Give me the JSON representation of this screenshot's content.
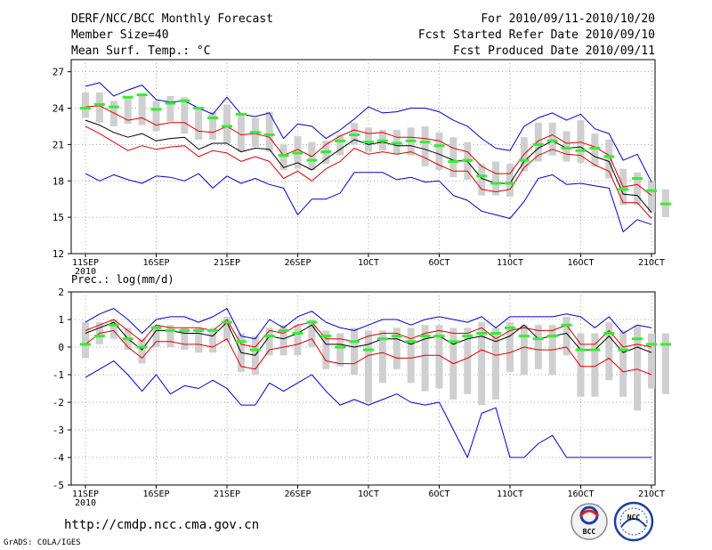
{
  "header": {
    "title": "DERF/NCC/BCC Monthly Forecast",
    "member_size": "Member Size=40",
    "variable": "Mean Surf. Temp.: °C",
    "period": "For 2010/09/11-2010/10/20",
    "started": "Fcst Started Refer Date 2010/09/10",
    "produced": "Fcst Produced Date 2010/09/11"
  },
  "footer": {
    "url": "http://cmdp.ncc.cma.gov.cn",
    "credit": "GrADS: COLA/IGES",
    "logo_bcc": "BCC",
    "logo_ncc": "NCC"
  },
  "colors": {
    "envelope": "#0000cc",
    "spread": "#dd0000",
    "mean": "#000000",
    "bar": "#cfcfcf",
    "observed": "#33ee33",
    "grid": "#888888"
  },
  "chart_data": [
    {
      "type": "line",
      "title": "Mean Surf. Temp.: °C",
      "ylabel": "°C",
      "ylim": [
        12,
        28
      ],
      "yticks": [
        12,
        15,
        18,
        21,
        24,
        27
      ],
      "xlim": [
        0,
        40
      ],
      "xtick_positions": [
        0,
        5,
        10,
        15,
        20,
        25,
        30,
        35,
        40
      ],
      "xtick_labels": [
        "11SEP",
        "16SEP",
        "21SEP",
        "26SEP",
        "1OCT",
        "6OCT",
        "11OCT",
        "16OCT",
        "21OCT"
      ],
      "xtick_sublabel": "2010",
      "series": [
        {
          "name": "ensemble max",
          "color": "#0000cc",
          "values": [
            25.8,
            26.1,
            25.0,
            25.5,
            25.9,
            24.7,
            24.5,
            24.6,
            24.0,
            23.5,
            24.9,
            23.5,
            23.3,
            23.6,
            21.5,
            22.7,
            22.5,
            21.5,
            22.2,
            23.1,
            24.1,
            23.6,
            23.7,
            24.0,
            24.0,
            23.7,
            23.0,
            22.5,
            21.5,
            20.7,
            20.5,
            22.5,
            23.2,
            23.6,
            23.0,
            23.5,
            22.3,
            21.9,
            19.7,
            20.2,
            17.9
          ]
        },
        {
          "name": "spread upper",
          "color": "#dd0000",
          "values": [
            24.1,
            24.2,
            23.6,
            23.0,
            23.2,
            22.6,
            22.8,
            22.8,
            22.1,
            22.0,
            22.5,
            21.8,
            21.9,
            21.6,
            20.1,
            20.6,
            20.0,
            21.0,
            21.7,
            22.2,
            21.9,
            22.0,
            21.6,
            21.6,
            21.5,
            21.3,
            20.7,
            20.4,
            19.2,
            18.6,
            18.6,
            20.2,
            21.3,
            21.8,
            21.1,
            21.2,
            20.8,
            20.1,
            17.5,
            17.7,
            16.8
          ]
        },
        {
          "name": "ensemble mean",
          "color": "#000000",
          "values": [
            23.0,
            22.6,
            22.0,
            21.6,
            21.9,
            21.3,
            21.5,
            21.6,
            20.6,
            21.1,
            21.1,
            20.4,
            20.7,
            20.6,
            19.1,
            19.5,
            18.9,
            19.8,
            20.6,
            21.4,
            21.0,
            21.2,
            20.9,
            20.9,
            20.6,
            20.2,
            19.7,
            19.6,
            18.2,
            17.8,
            17.8,
            19.6,
            20.7,
            21.3,
            20.7,
            20.8,
            20.0,
            19.6,
            16.9,
            16.8,
            15.4
          ]
        },
        {
          "name": "spread lower",
          "color": "#dd0000",
          "values": [
            22.5,
            21.9,
            21.2,
            20.5,
            20.9,
            20.6,
            20.8,
            20.9,
            20.0,
            20.5,
            20.3,
            19.6,
            20.0,
            19.6,
            18.2,
            18.8,
            18.0,
            19.0,
            19.6,
            20.7,
            20.2,
            20.4,
            20.2,
            20.4,
            19.9,
            19.3,
            18.8,
            18.8,
            17.3,
            17.1,
            17.3,
            19.1,
            20.1,
            20.6,
            20.2,
            20.1,
            19.3,
            18.8,
            16.2,
            16.2,
            14.9
          ]
        },
        {
          "name": "ensemble min",
          "color": "#0000cc",
          "values": [
            18.6,
            18.0,
            18.5,
            18.1,
            17.8,
            18.4,
            18.3,
            18.0,
            18.6,
            17.4,
            18.4,
            17.8,
            18.2,
            17.7,
            17.4,
            15.2,
            16.5,
            16.5,
            17.0,
            18.7,
            18.7,
            18.7,
            18.1,
            18.3,
            17.9,
            18.0,
            16.8,
            16.4,
            15.5,
            15.2,
            14.9,
            16.3,
            18.2,
            18.5,
            17.7,
            17.8,
            17.6,
            17.4,
            13.8,
            14.8,
            14.4
          ]
        },
        {
          "name": "observed",
          "color": "#33ee33",
          "values": [
            24.0,
            24.3,
            24.1,
            24.9,
            25.1,
            23.9,
            24.4,
            24.6,
            24.0,
            23.2,
            22.5,
            23.5,
            22.0,
            21.8,
            20.1,
            20.3,
            19.7,
            20.4,
            21.3,
            21.8,
            21.2,
            21.3,
            21.1,
            21.3,
            21.2,
            20.9,
            19.6,
            19.7,
            18.4,
            17.8,
            17.8,
            19.7,
            21.0,
            21.3,
            20.7,
            20.5,
            20.7,
            20.0,
            17.3,
            18.2,
            17.2,
            16.1
          ]
        }
      ],
      "range_bars": {
        "lower": [
          23.2,
          22.8,
          22.5,
          22.7,
          22.6,
          22.1,
          22.9,
          21.9,
          21.4,
          21.4,
          21.1,
          20.4,
          20.8,
          20.4,
          18.9,
          19.0,
          18.9,
          19.4,
          20.1,
          21.0,
          20.4,
          20.5,
          20.2,
          20.1,
          19.2,
          18.9,
          18.3,
          18.1,
          16.8,
          16.8,
          16.7,
          18.8,
          19.6,
          20.1,
          19.6,
          19.5,
          19.2,
          18.2,
          16.0,
          16.0,
          15.4,
          15.0
        ],
        "upper": [
          25.3,
          25.3,
          24.6,
          25.0,
          25.2,
          24.6,
          25.0,
          24.9,
          24.1,
          23.7,
          24.3,
          23.5,
          23.2,
          23.7,
          21.0,
          21.7,
          21.2,
          21.3,
          21.8,
          22.8,
          22.4,
          22.2,
          22.2,
          22.4,
          22.5,
          22.0,
          21.6,
          21.2,
          19.4,
          19.6,
          19.4,
          21.6,
          22.8,
          22.8,
          22.1,
          23.0,
          21.9,
          21.4,
          19.0,
          18.7,
          18.0,
          17.3
        ]
      }
    },
    {
      "type": "line",
      "title": "Prec.: log(mm/d)",
      "ylabel": "log(mm/d)",
      "ylim": [
        -5,
        2
      ],
      "yticks": [
        -5,
        -4,
        -3,
        -2,
        -1,
        0,
        1,
        2
      ],
      "xlim": [
        0,
        40
      ],
      "xtick_positions": [
        0,
        5,
        10,
        15,
        20,
        25,
        30,
        35,
        40
      ],
      "xtick_labels": [
        "11SEP",
        "16SEP",
        "21SEP",
        "26SEP",
        "1OCT",
        "6OCT",
        "11OCT",
        "16OCT",
        "21OCT"
      ],
      "xtick_sublabel": "2010",
      "series": [
        {
          "name": "ensemble max",
          "color": "#0000cc",
          "values": [
            0.9,
            1.2,
            1.4,
            1.0,
            0.5,
            1.0,
            1.1,
            1.1,
            0.9,
            1.1,
            1.4,
            0.4,
            0.3,
            1.0,
            0.7,
            1.1,
            1.3,
            0.9,
            0.7,
            0.6,
            0.8,
            1.0,
            1.0,
            0.8,
            1.0,
            1.1,
            1.0,
            0.9,
            1.1,
            0.7,
            1.1,
            1.1,
            1.1,
            1.1,
            1.2,
            1.1,
            0.7,
            1.1,
            0.5,
            0.8,
            0.7
          ]
        },
        {
          "name": "spread upper",
          "color": "#dd0000",
          "values": [
            0.6,
            0.8,
            1.0,
            0.6,
            0.2,
            0.8,
            0.7,
            0.7,
            0.7,
            0.6,
            1.0,
            0.1,
            0.0,
            0.6,
            0.5,
            0.8,
            0.9,
            0.3,
            0.3,
            0.2,
            0.4,
            0.5,
            0.5,
            0.3,
            0.5,
            0.6,
            0.5,
            0.5,
            0.7,
            0.3,
            0.6,
            0.7,
            0.6,
            0.6,
            0.8,
            0.1,
            0.1,
            0.6,
            0.0,
            0.1,
            0.0
          ]
        },
        {
          "name": "ensemble mean",
          "color": "#000000",
          "values": [
            0.5,
            0.7,
            0.9,
            0.3,
            -0.1,
            0.6,
            0.6,
            0.5,
            0.5,
            0.4,
            0.9,
            -0.2,
            -0.3,
            0.4,
            0.3,
            0.5,
            0.8,
            0.1,
            0.1,
            0.0,
            0.1,
            0.3,
            0.3,
            0.1,
            0.3,
            0.4,
            0.1,
            0.3,
            0.4,
            0.2,
            0.4,
            0.8,
            0.3,
            0.4,
            0.5,
            -0.1,
            -0.1,
            0.4,
            -0.2,
            0.0,
            -0.2
          ]
        },
        {
          "name": "spread lower",
          "color": "#dd0000",
          "values": [
            0.1,
            0.5,
            0.6,
            0.0,
            -0.4,
            0.2,
            0.2,
            0.1,
            0.1,
            0.0,
            0.3,
            -0.7,
            -0.8,
            -0.1,
            0.0,
            0.1,
            0.3,
            -0.5,
            -0.6,
            -0.6,
            -0.3,
            -0.2,
            -0.4,
            -0.4,
            -0.3,
            -0.3,
            -0.6,
            -0.4,
            -0.1,
            -0.3,
            -0.2,
            0.0,
            -0.1,
            -0.1,
            0.0,
            -0.7,
            -0.7,
            -0.4,
            -0.9,
            -0.8,
            -1.0
          ]
        },
        {
          "name": "ensemble min",
          "color": "#0000cc",
          "values": [
            -1.1,
            -0.8,
            -0.5,
            -1.0,
            -1.6,
            -1.0,
            -1.7,
            -1.4,
            -1.5,
            -1.2,
            -1.5,
            -2.1,
            -2.1,
            -1.3,
            -1.6,
            -1.3,
            -1.0,
            -1.6,
            -2.1,
            -1.9,
            -2.1,
            -1.9,
            -1.7,
            -2.0,
            -2.1,
            -2.0,
            -3.0,
            -4.0,
            -2.4,
            -2.2,
            -4.0,
            -4.0,
            -3.5,
            -3.2,
            -4.0,
            -4.0,
            -4.0,
            -4.0,
            -4.0,
            -4.0,
            -4.0
          ]
        },
        {
          "name": "observed",
          "color": "#33ee33",
          "values": [
            0.1,
            0.4,
            0.8,
            0.3,
            0.0,
            0.7,
            0.6,
            0.6,
            0.6,
            0.6,
            0.9,
            0.2,
            -0.1,
            0.4,
            0.6,
            0.5,
            0.9,
            0.4,
            0.0,
            0.2,
            -0.1,
            0.3,
            0.4,
            0.2,
            0.4,
            0.4,
            0.2,
            0.4,
            0.5,
            0.5,
            0.7,
            0.4,
            0.3,
            0.4,
            0.8,
            -0.1,
            -0.1,
            0.5,
            -0.1,
            0.3,
            0.1,
            0.1
          ]
        }
      ],
      "range_bars": {
        "lower": [
          -0.4,
          0.1,
          0.3,
          -0.1,
          -0.6,
          0.0,
          0.0,
          -0.1,
          -0.2,
          -0.2,
          0.2,
          -0.9,
          -1.0,
          -0.3,
          -0.3,
          -0.3,
          0.0,
          -0.8,
          -0.7,
          -1.0,
          -2.0,
          -1.3,
          -0.8,
          -1.3,
          -1.6,
          -1.5,
          -1.9,
          -1.7,
          -2.1,
          -1.9,
          -0.9,
          -1.0,
          -0.8,
          -1.0,
          -0.3,
          -1.8,
          -1.8,
          -1.2,
          -1.8,
          -2.3,
          -1.5,
          -1.7
        ],
        "upper": [
          0.9,
          0.9,
          1.0,
          0.7,
          0.3,
          0.8,
          0.8,
          0.7,
          0.7,
          0.7,
          1.1,
          0.5,
          0.4,
          0.7,
          0.8,
          0.8,
          1.0,
          0.6,
          0.5,
          0.7,
          0.6,
          0.6,
          0.7,
          0.7,
          0.8,
          0.8,
          0.7,
          0.7,
          0.9,
          0.7,
          0.9,
          0.8,
          0.8,
          0.8,
          1.1,
          0.5,
          0.5,
          0.9,
          0.6,
          0.8,
          0.5,
          0.5
        ]
      }
    }
  ]
}
